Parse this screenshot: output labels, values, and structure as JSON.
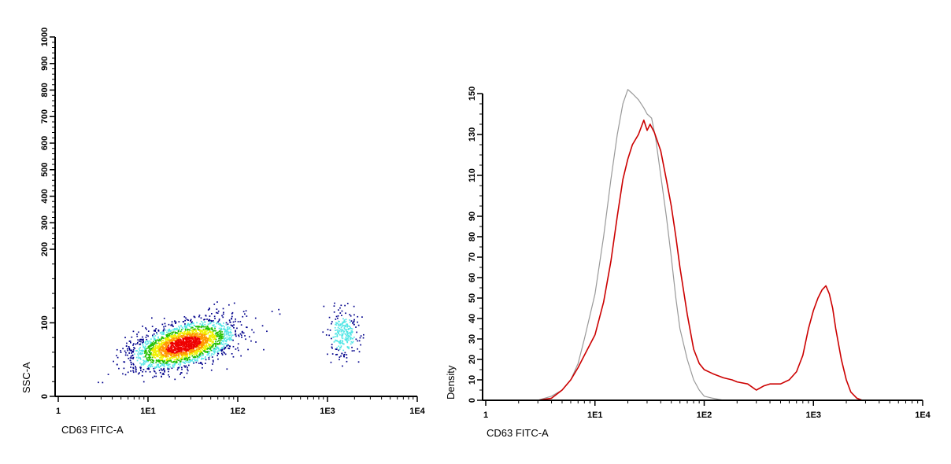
{
  "chart_data": [
    {
      "type": "scatter",
      "xlabel": "CD63 FITC-A",
      "ylabel": "SSC-A",
      "x_scale": "log",
      "y_scale": "biexponential",
      "xlim": [
        1,
        10000
      ],
      "ylim": [
        0,
        1000
      ],
      "x_ticks": [
        1,
        10,
        100,
        1000,
        10000
      ],
      "x_tick_labels": [
        "1",
        "1E1",
        "1E2",
        "1E3",
        "1E4"
      ],
      "y_ticks": [
        0,
        100,
        200,
        300,
        400,
        500,
        600,
        700,
        800,
        900,
        1000
      ],
      "y_tick_labels": [
        "0",
        "100",
        "200",
        "300",
        "400",
        "500",
        "600",
        "700",
        "800",
        "900",
        "1000"
      ],
      "density_colors": [
        "#00008b",
        "#55e6e6",
        "#22c000",
        "#f0f000",
        "#ff9900",
        "#ee0000"
      ],
      "populations": [
        {
          "x_center": 25,
          "x_spread": 0.28,
          "y_center": 70,
          "y_spread": 14,
          "points": 2600
        },
        {
          "x_center": 1500,
          "x_spread": 0.08,
          "y_center": 85,
          "y_spread": 15,
          "points": 260
        }
      ],
      "grid": false
    },
    {
      "type": "line",
      "xlabel": "CD63 FITC-A",
      "ylabel": "Density",
      "x_scale": "log",
      "xlim": [
        1,
        10000
      ],
      "ylim": [
        0,
        150
      ],
      "x_ticks": [
        1,
        10,
        100,
        1000,
        10000
      ],
      "x_tick_labels": [
        "1",
        "1E1",
        "1E2",
        "1E3",
        "1E4"
      ],
      "y_ticks": [
        0,
        10,
        20,
        30,
        40,
        50,
        60,
        70,
        80,
        90,
        110,
        130,
        150
      ],
      "y_tick_labels": [
        "0",
        "10",
        "20",
        "30",
        "40",
        "50",
        "60",
        "70",
        "80",
        "90",
        "110",
        "130",
        "150"
      ],
      "grid": false,
      "series": [
        {
          "color": "#999999",
          "x": [
            1,
            3,
            4,
            5,
            6,
            7,
            8,
            10,
            12,
            14,
            16,
            18,
            20,
            22,
            25,
            28,
            30,
            33,
            36,
            40,
            45,
            50,
            55,
            60,
            70,
            80,
            90,
            100,
            120,
            150,
            200,
            300,
            10000
          ],
          "y": [
            0,
            0,
            2,
            5,
            10,
            18,
            30,
            52,
            80,
            108,
            130,
            145,
            152,
            150,
            147,
            143,
            140,
            138,
            128,
            110,
            90,
            70,
            50,
            35,
            20,
            10,
            5,
            2,
            1,
            0,
            0,
            0,
            0
          ]
        },
        {
          "color": "#cc0000",
          "x": [
            1,
            3,
            4,
            5,
            6,
            7,
            8,
            10,
            12,
            14,
            16,
            18,
            20,
            22,
            25,
            28,
            30,
            32,
            35,
            40,
            45,
            50,
            55,
            60,
            70,
            80,
            90,
            100,
            120,
            150,
            180,
            200,
            250,
            300,
            350,
            400,
            500,
            600,
            700,
            800,
            900,
            1000,
            1100,
            1200,
            1300,
            1400,
            1500,
            1600,
            1800,
            2000,
            2200,
            2500,
            2800,
            3000,
            10000
          ],
          "y": [
            0,
            0,
            1,
            5,
            10,
            16,
            22,
            32,
            48,
            68,
            90,
            108,
            118,
            125,
            130,
            137,
            132,
            135,
            131,
            122,
            108,
            95,
            80,
            65,
            42,
            25,
            18,
            15,
            13,
            11,
            10,
            9,
            8,
            5,
            7,
            8,
            8,
            10,
            14,
            22,
            35,
            44,
            50,
            54,
            56,
            52,
            45,
            35,
            20,
            10,
            4,
            1,
            0,
            0,
            0
          ]
        }
      ]
    }
  ]
}
